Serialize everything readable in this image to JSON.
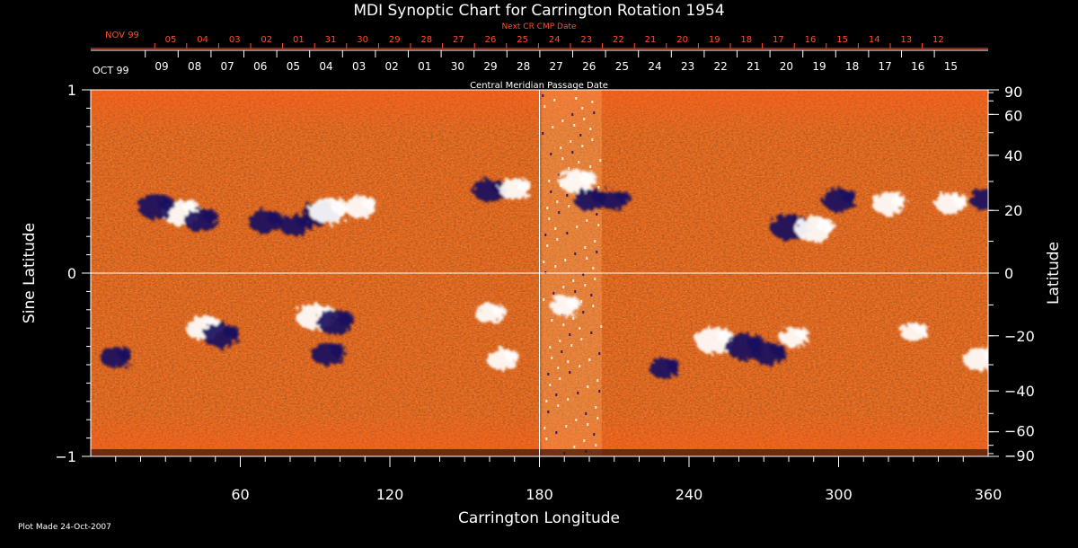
{
  "chart_data": {
    "type": "heatmap",
    "title": "MDI Synoptic Chart for Carrington Rotation 1954",
    "xlabel": "Carrington Longitude",
    "ylabel_left": "Sine Latitude",
    "ylabel_right": "Latitude",
    "xlim": [
      0,
      360
    ],
    "ylim": [
      -1,
      1
    ],
    "x_ticks": [
      "60",
      "120",
      "180",
      "240",
      "300",
      "360"
    ],
    "y_ticks_left": [
      "1",
      "0",
      "−1"
    ],
    "y_ticks_right": [
      "90",
      "60",
      "40",
      "20",
      "0",
      "−20",
      "−40",
      "−60",
      "−90"
    ],
    "next_rotation_label": "Next CR CMP Date",
    "next_rotation_month": "NOV 99",
    "next_rotation_dates": [
      "05",
      "04",
      "03",
      "02",
      "01",
      "31",
      "30",
      "29",
      "28",
      "27",
      "26",
      "25",
      "24",
      "23",
      "22",
      "21",
      "20",
      "19",
      "18",
      "17",
      "16",
      "15",
      "14",
      "13",
      "12"
    ],
    "cmp_label": "Central Meridian Passage Date",
    "cmp_month": "OCT 99",
    "cmp_dates": [
      "09",
      "08",
      "07",
      "06",
      "05",
      "04",
      "03",
      "02",
      "01",
      "30",
      "29",
      "28",
      "27",
      "26",
      "25",
      "24",
      "23",
      "22",
      "21",
      "20",
      "19",
      "18",
      "17",
      "16",
      "15"
    ],
    "crosshair": {
      "x": 180,
      "y": 0
    },
    "regions": [
      {
        "lon": 36,
        "sinlat": 0.33,
        "polarity": "positive",
        "strength": 1.0
      },
      {
        "lon": 26,
        "sinlat": 0.36,
        "polarity": "negative",
        "strength": 0.9
      },
      {
        "lon": 44,
        "sinlat": 0.29,
        "polarity": "negative",
        "strength": 0.8
      },
      {
        "lon": 70,
        "sinlat": 0.28,
        "polarity": "negative",
        "strength": 0.8
      },
      {
        "lon": 82,
        "sinlat": 0.26,
        "polarity": "negative",
        "strength": 0.7
      },
      {
        "lon": 92,
        "sinlat": 0.33,
        "polarity": "negative",
        "strength": 0.9
      },
      {
        "lon": 95,
        "sinlat": 0.34,
        "polarity": "positive",
        "strength": 1.0
      },
      {
        "lon": 108,
        "sinlat": 0.36,
        "polarity": "positive",
        "strength": 0.7
      },
      {
        "lon": 160,
        "sinlat": 0.45,
        "polarity": "negative",
        "strength": 0.8
      },
      {
        "lon": 170,
        "sinlat": 0.46,
        "polarity": "positive",
        "strength": 0.7
      },
      {
        "lon": 195,
        "sinlat": 0.5,
        "polarity": "positive",
        "strength": 0.9
      },
      {
        "lon": 200,
        "sinlat": 0.4,
        "polarity": "negative",
        "strength": 0.7
      },
      {
        "lon": 210,
        "sinlat": 0.4,
        "polarity": "negative",
        "strength": 0.6
      },
      {
        "lon": 280,
        "sinlat": 0.25,
        "polarity": "negative",
        "strength": 1.0
      },
      {
        "lon": 290,
        "sinlat": 0.24,
        "polarity": "positive",
        "strength": 1.0
      },
      {
        "lon": 300,
        "sinlat": 0.4,
        "polarity": "negative",
        "strength": 0.8
      },
      {
        "lon": 320,
        "sinlat": 0.38,
        "polarity": "positive",
        "strength": 0.8
      },
      {
        "lon": 345,
        "sinlat": 0.38,
        "polarity": "positive",
        "strength": 0.7
      },
      {
        "lon": 359,
        "sinlat": 0.4,
        "polarity": "negative",
        "strength": 0.7
      },
      {
        "lon": 45,
        "sinlat": -0.3,
        "polarity": "positive",
        "strength": 0.9
      },
      {
        "lon": 52,
        "sinlat": -0.34,
        "polarity": "negative",
        "strength": 0.9
      },
      {
        "lon": 90,
        "sinlat": -0.24,
        "polarity": "positive",
        "strength": 1.0
      },
      {
        "lon": 98,
        "sinlat": -0.27,
        "polarity": "negative",
        "strength": 0.9
      },
      {
        "lon": 95,
        "sinlat": -0.44,
        "polarity": "negative",
        "strength": 0.8
      },
      {
        "lon": 10,
        "sinlat": -0.46,
        "polarity": "negative",
        "strength": 0.7
      },
      {
        "lon": 160,
        "sinlat": -0.22,
        "polarity": "positive",
        "strength": 0.6
      },
      {
        "lon": 165,
        "sinlat": -0.47,
        "polarity": "positive",
        "strength": 0.7
      },
      {
        "lon": 190,
        "sinlat": -0.18,
        "polarity": "positive",
        "strength": 0.6
      },
      {
        "lon": 250,
        "sinlat": -0.37,
        "polarity": "positive",
        "strength": 1.0
      },
      {
        "lon": 262,
        "sinlat": -0.4,
        "polarity": "negative",
        "strength": 1.0
      },
      {
        "lon": 272,
        "sinlat": -0.44,
        "polarity": "negative",
        "strength": 0.8
      },
      {
        "lon": 230,
        "sinlat": -0.52,
        "polarity": "negative",
        "strength": 0.6
      },
      {
        "lon": 282,
        "sinlat": -0.35,
        "polarity": "positive",
        "strength": 0.6
      },
      {
        "lon": 330,
        "sinlat": -0.32,
        "polarity": "positive",
        "strength": 0.5
      },
      {
        "lon": 357,
        "sinlat": -0.47,
        "polarity": "positive",
        "strength": 0.9
      }
    ]
  },
  "footer": {
    "plot_made": "Plot Made 24-Oct-2007"
  },
  "colors": {
    "background": "#000000",
    "text": "#ffffff",
    "next_rotation": "#ff4e2a",
    "base": "#e8681c",
    "positive": "#ffffff",
    "negative": "#1a1060"
  }
}
